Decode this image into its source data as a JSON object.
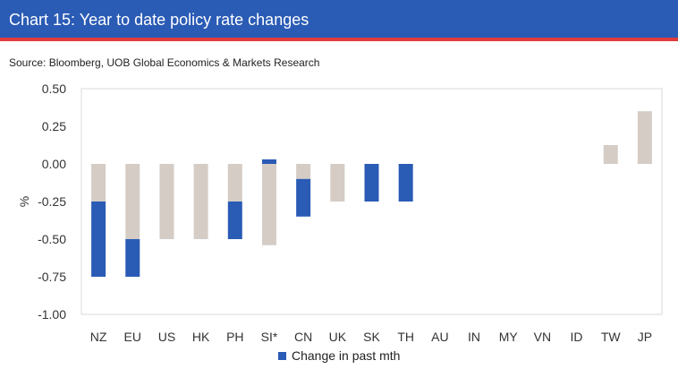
{
  "header": {
    "title": "Chart 15: Year to date policy rate changes",
    "source": "Source: Bloomberg, UOB Global Economics & Markets Research"
  },
  "colors": {
    "title_bg": "#2a5bb5",
    "title_rule": "#e03c3c",
    "ytd_bar": "#d4ccc5",
    "past_month_bar": "#2a5bb5"
  },
  "chart_data": {
    "type": "bar",
    "stacked": true,
    "categories": [
      "NZ",
      "EU",
      "US",
      "HK",
      "PH",
      "SI*",
      "CN",
      "UK",
      "SK",
      "TH",
      "AU",
      "IN",
      "MY",
      "VN",
      "ID",
      "TW",
      "JP"
    ],
    "series": [
      {
        "color": "#d4ccc5",
        "values": [
          -0.25,
          -0.5,
          -0.5,
          -0.5,
          -0.25,
          -0.54,
          -0.1,
          -0.25,
          0,
          0,
          0,
          0,
          0,
          0,
          0,
          0.125,
          0.35
        ]
      },
      {
        "name": "Change in past mth",
        "color": "#2a5bb5",
        "values": [
          -0.5,
          -0.25,
          0,
          0,
          -0.25,
          0.03,
          -0.25,
          0,
          -0.25,
          -0.25,
          0,
          0,
          0,
          0,
          0,
          0,
          0
        ]
      }
    ],
    "ylabel": "%",
    "ylim": [
      -1.0,
      0.5
    ],
    "yticks": [
      "0.50",
      "0.25",
      "0.00",
      "-0.25",
      "-0.50",
      "-0.75",
      "-1.00"
    ],
    "ytick_values": [
      0.5,
      0.25,
      0,
      -0.25,
      -0.5,
      -0.75,
      -1.0
    ],
    "legend": {
      "position": "bottom",
      "entries": [
        "Change in past mth"
      ]
    },
    "grid": false
  }
}
